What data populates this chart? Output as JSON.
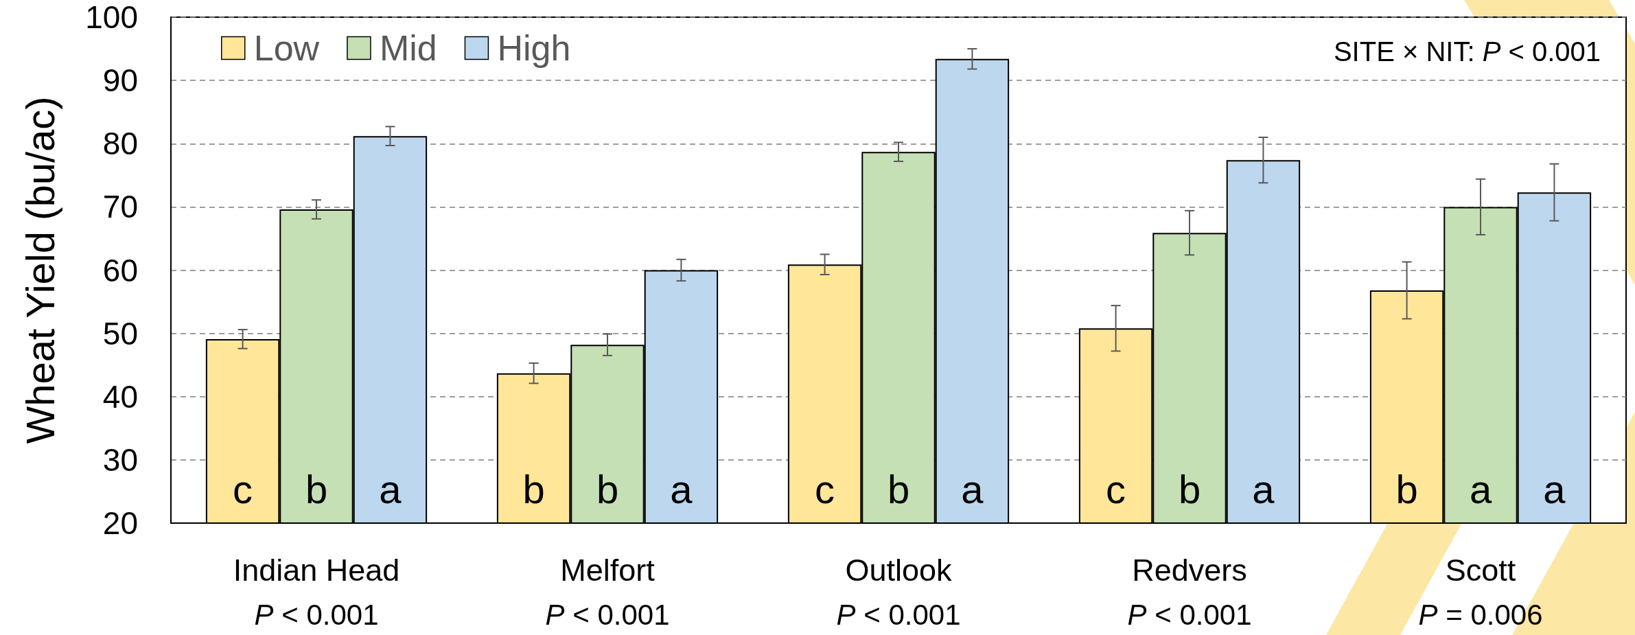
{
  "chart_data": {
    "type": "bar",
    "ylabel": "Wheat Yield (bu/ac)",
    "categories": [
      "Indian Head",
      "Melfort",
      "Outlook",
      "Redvers",
      "Scott"
    ],
    "series": [
      {
        "name": "Low",
        "color": "#ffe699",
        "values": [
          49.1,
          43.7,
          60.9,
          50.8,
          56.8
        ],
        "errors": [
          1.5,
          1.6,
          1.6,
          3.6,
          4.5
        ],
        "value_labels": [
          "c",
          "b",
          "c",
          "c",
          "b"
        ]
      },
      {
        "name": "Mid",
        "color": "#c5e0b4",
        "values": [
          69.6,
          48.2,
          78.7,
          65.9,
          70.0
        ],
        "errors": [
          1.5,
          1.7,
          1.5,
          3.5,
          4.4
        ],
        "value_labels": [
          "b",
          "b",
          "b",
          "b",
          "a"
        ]
      },
      {
        "name": "High",
        "color": "#bdd7ee",
        "values": [
          81.2,
          60.0,
          93.4,
          77.4,
          72.3
        ],
        "errors": [
          1.5,
          1.7,
          1.6,
          3.6,
          4.5
        ],
        "value_labels": [
          "a",
          "a",
          "a",
          "a",
          "a"
        ]
      }
    ],
    "ylim": [
      20,
      100
    ],
    "yticks": [
      20,
      30,
      40,
      50,
      60,
      70,
      80,
      90,
      100
    ],
    "grid": "y",
    "legend": "top left",
    "annotations": [
      "SITE × NIT: P < 0.001",
      "P < 0.001",
      "P < 0.001",
      "P < 0.001",
      "P < 0.001",
      "P = 0.006"
    ]
  }
}
